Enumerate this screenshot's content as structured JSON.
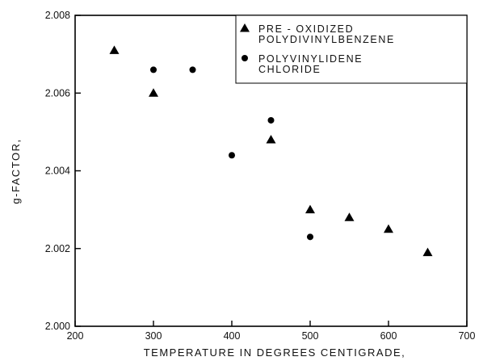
{
  "chart_data": {
    "type": "scatter",
    "title": "",
    "xlabel": "TEMPERATURE IN DEGREES CENTIGRADE,",
    "ylabel": "g-FACTOR,",
    "xlim": [
      200,
      700
    ],
    "ylim": [
      2.0,
      2.008
    ],
    "x_ticks": [
      "200",
      "300",
      "400",
      "500",
      "600",
      "700"
    ],
    "y_ticks": [
      "2.000",
      "2.002",
      "2.004",
      "2.006",
      "2.008"
    ],
    "grid": false,
    "legend_position": "top-right",
    "series": [
      {
        "name_lines": [
          "PRE - OXIDIZED",
          "POLYDIVINYLBENZENE"
        ],
        "marker": "triangle",
        "color": "#000000",
        "points": [
          {
            "x": 250,
            "y": 2.0071
          },
          {
            "x": 300,
            "y": 2.006
          },
          {
            "x": 450,
            "y": 2.0048
          },
          {
            "x": 500,
            "y": 2.003
          },
          {
            "x": 550,
            "y": 2.0028
          },
          {
            "x": 600,
            "y": 2.0025
          },
          {
            "x": 650,
            "y": 2.0019
          }
        ]
      },
      {
        "name_lines": [
          "POLYVINYLIDENE",
          "CHLORIDE"
        ],
        "marker": "circle",
        "color": "#000000",
        "points": [
          {
            "x": 300,
            "y": 2.0066
          },
          {
            "x": 350,
            "y": 2.0066
          },
          {
            "x": 400,
            "y": 2.0044
          },
          {
            "x": 450,
            "y": 2.0053
          },
          {
            "x": 500,
            "y": 2.0023
          }
        ]
      }
    ]
  }
}
